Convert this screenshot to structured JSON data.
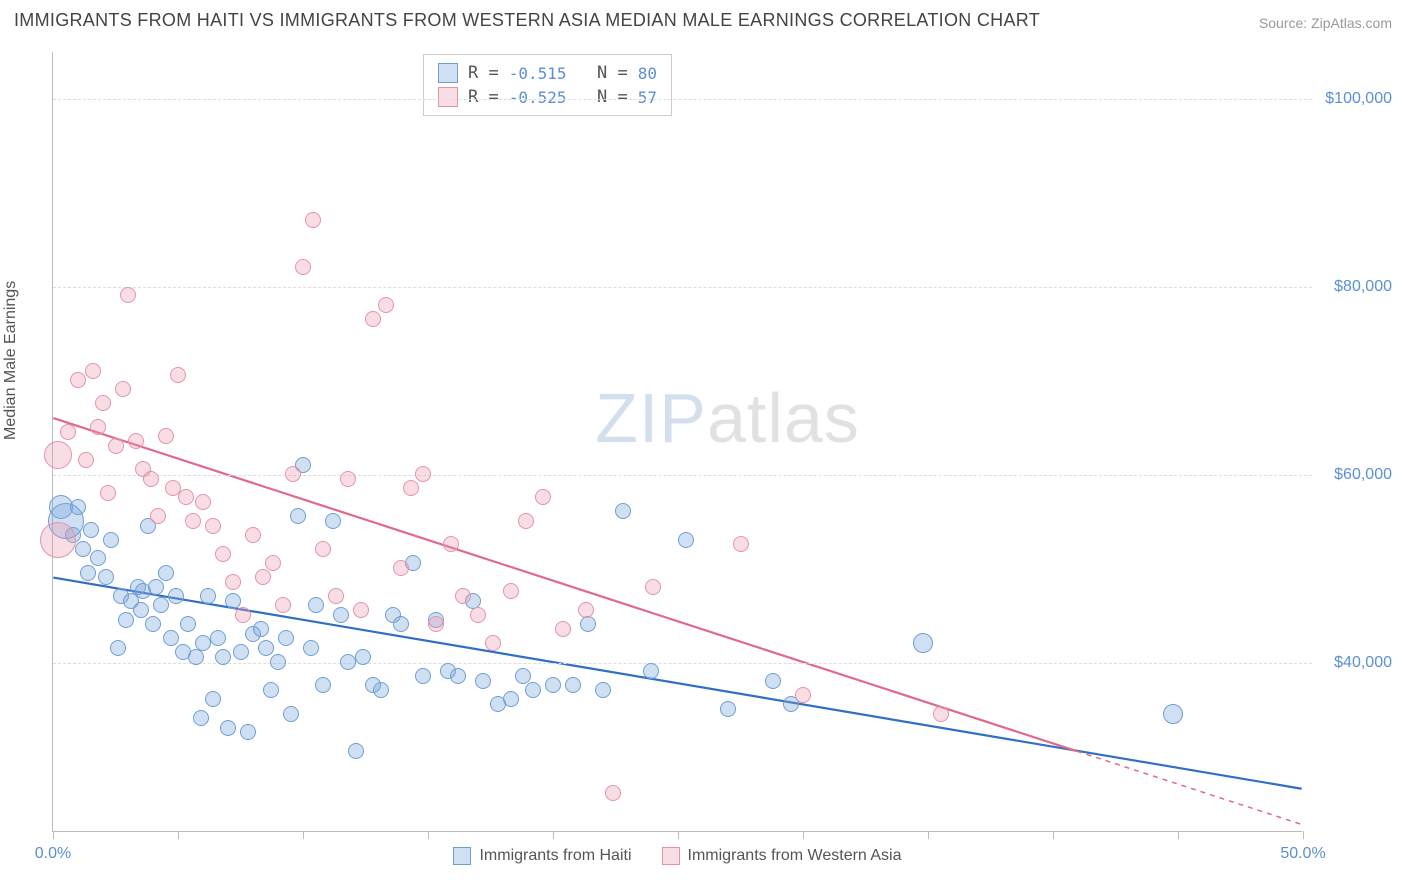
{
  "title": "IMMIGRANTS FROM HAITI VS IMMIGRANTS FROM WESTERN ASIA MEDIAN MALE EARNINGS CORRELATION CHART",
  "source_prefix": "Source: ",
  "source_name": "ZipAtlas.com",
  "y_axis_label": "Median Male Earnings",
  "watermark": {
    "part1": "ZIP",
    "part2": "atlas"
  },
  "chart": {
    "type": "scatter",
    "xlim": [
      0,
      50
    ],
    "ylim": [
      22000,
      105000
    ],
    "x_ticks": [
      0,
      5,
      10,
      15,
      20,
      25,
      30,
      35,
      40,
      45,
      50
    ],
    "x_tick_labels_shown": {
      "0": "0.0%",
      "50": "50.0%"
    },
    "y_gridlines": [
      40000,
      60000,
      80000,
      100000
    ],
    "y_tick_labels": {
      "40000": "$40,000",
      "60000": "$60,000",
      "80000": "$80,000",
      "100000": "$100,000"
    },
    "background_color": "#ffffff",
    "grid_color": "#dddddd",
    "axis_color": "#bbbbbb",
    "tick_label_color": "#5b8fd6",
    "marker_radius": 8
  },
  "series": [
    {
      "name": "Immigrants from Haiti",
      "fill": "rgba(120,165,220,0.35)",
      "stroke": "#6f9ed6",
      "line_color": "#2f6fc4",
      "R": "-0.515",
      "N": "80",
      "trend": {
        "x1": 0,
        "y1": 49000,
        "x2": 50,
        "y2": 26500
      },
      "points": [
        {
          "x": 0.3,
          "y": 56500,
          "r": 12
        },
        {
          "x": 0.5,
          "y": 55000,
          "r": 18
        },
        {
          "x": 0.8,
          "y": 53500
        },
        {
          "x": 1.0,
          "y": 56500
        },
        {
          "x": 1.2,
          "y": 52000
        },
        {
          "x": 1.4,
          "y": 49500
        },
        {
          "x": 1.5,
          "y": 54000
        },
        {
          "x": 1.8,
          "y": 51000
        },
        {
          "x": 2.1,
          "y": 49000
        },
        {
          "x": 2.3,
          "y": 53000
        },
        {
          "x": 2.6,
          "y": 41500
        },
        {
          "x": 2.7,
          "y": 47000
        },
        {
          "x": 2.9,
          "y": 44500
        },
        {
          "x": 3.1,
          "y": 46500
        },
        {
          "x": 3.4,
          "y": 48000
        },
        {
          "x": 3.5,
          "y": 45500
        },
        {
          "x": 3.6,
          "y": 47500
        },
        {
          "x": 3.8,
          "y": 54500
        },
        {
          "x": 4.0,
          "y": 44000
        },
        {
          "x": 4.1,
          "y": 48000
        },
        {
          "x": 4.3,
          "y": 46000
        },
        {
          "x": 4.5,
          "y": 49500
        },
        {
          "x": 4.7,
          "y": 42500
        },
        {
          "x": 4.9,
          "y": 47000
        },
        {
          "x": 5.2,
          "y": 41000
        },
        {
          "x": 5.4,
          "y": 44000
        },
        {
          "x": 5.7,
          "y": 40500
        },
        {
          "x": 5.9,
          "y": 34000
        },
        {
          "x": 6.0,
          "y": 42000
        },
        {
          "x": 6.2,
          "y": 47000
        },
        {
          "x": 6.4,
          "y": 36000
        },
        {
          "x": 6.6,
          "y": 42500
        },
        {
          "x": 6.8,
          "y": 40500
        },
        {
          "x": 7.0,
          "y": 33000
        },
        {
          "x": 7.2,
          "y": 46500
        },
        {
          "x": 7.5,
          "y": 41000
        },
        {
          "x": 7.8,
          "y": 32500
        },
        {
          "x": 8.0,
          "y": 43000
        },
        {
          "x": 8.3,
          "y": 43500
        },
        {
          "x": 8.5,
          "y": 41500
        },
        {
          "x": 8.7,
          "y": 37000
        },
        {
          "x": 9.0,
          "y": 40000
        },
        {
          "x": 9.3,
          "y": 42500
        },
        {
          "x": 9.5,
          "y": 34500
        },
        {
          "x": 9.8,
          "y": 55500
        },
        {
          "x": 10.0,
          "y": 61000
        },
        {
          "x": 10.3,
          "y": 41500
        },
        {
          "x": 10.5,
          "y": 46000
        },
        {
          "x": 10.8,
          "y": 37500
        },
        {
          "x": 11.2,
          "y": 55000
        },
        {
          "x": 11.5,
          "y": 45000
        },
        {
          "x": 11.8,
          "y": 40000
        },
        {
          "x": 12.1,
          "y": 30500
        },
        {
          "x": 12.4,
          "y": 40500
        },
        {
          "x": 12.8,
          "y": 37500
        },
        {
          "x": 13.1,
          "y": 37000
        },
        {
          "x": 13.6,
          "y": 45000
        },
        {
          "x": 13.9,
          "y": 44000
        },
        {
          "x": 14.4,
          "y": 50500
        },
        {
          "x": 14.8,
          "y": 38500
        },
        {
          "x": 15.3,
          "y": 44500
        },
        {
          "x": 15.8,
          "y": 39000
        },
        {
          "x": 16.2,
          "y": 38500
        },
        {
          "x": 16.8,
          "y": 46500
        },
        {
          "x": 17.2,
          "y": 38000
        },
        {
          "x": 17.8,
          "y": 35500
        },
        {
          "x": 18.3,
          "y": 36000
        },
        {
          "x": 18.8,
          "y": 38500
        },
        {
          "x": 19.2,
          "y": 37000
        },
        {
          "x": 20.0,
          "y": 37500
        },
        {
          "x": 20.8,
          "y": 37500
        },
        {
          "x": 21.4,
          "y": 44000
        },
        {
          "x": 22.0,
          "y": 37000
        },
        {
          "x": 22.8,
          "y": 56000
        },
        {
          "x": 23.9,
          "y": 39000
        },
        {
          "x": 25.3,
          "y": 53000
        },
        {
          "x": 27.0,
          "y": 35000
        },
        {
          "x": 28.8,
          "y": 38000
        },
        {
          "x": 29.5,
          "y": 35500
        },
        {
          "x": 34.8,
          "y": 42000,
          "r": 10
        },
        {
          "x": 44.8,
          "y": 34500,
          "r": 10
        }
      ]
    },
    {
      "name": "Immigrants from Western Asia",
      "fill": "rgba(235,150,170,0.32)",
      "stroke": "#e593a8",
      "line_color": "#e06a8a",
      "R": "-0.525",
      "N": "57",
      "trend": {
        "x1": 0,
        "y1": 66000,
        "x2": 41,
        "y2": 30500
      },
      "trend_dashed_ext": {
        "x1": 41,
        "y1": 30500,
        "x2": 50,
        "y2": 22700
      },
      "points": [
        {
          "x": 0.2,
          "y": 53000,
          "r": 18
        },
        {
          "x": 0.2,
          "y": 62000,
          "r": 14
        },
        {
          "x": 0.6,
          "y": 64500
        },
        {
          "x": 1.0,
          "y": 70000
        },
        {
          "x": 1.3,
          "y": 61500
        },
        {
          "x": 1.6,
          "y": 71000
        },
        {
          "x": 1.8,
          "y": 65000
        },
        {
          "x": 2.0,
          "y": 67500
        },
        {
          "x": 2.2,
          "y": 58000
        },
        {
          "x": 2.5,
          "y": 63000
        },
        {
          "x": 2.8,
          "y": 69000
        },
        {
          "x": 3.0,
          "y": 79000
        },
        {
          "x": 3.3,
          "y": 63500
        },
        {
          "x": 3.6,
          "y": 60500
        },
        {
          "x": 3.9,
          "y": 59500
        },
        {
          "x": 4.2,
          "y": 55500
        },
        {
          "x": 4.5,
          "y": 64000
        },
        {
          "x": 4.8,
          "y": 58500
        },
        {
          "x": 5.0,
          "y": 70500
        },
        {
          "x": 5.3,
          "y": 57500
        },
        {
          "x": 5.6,
          "y": 55000
        },
        {
          "x": 6.0,
          "y": 57000
        },
        {
          "x": 6.4,
          "y": 54500
        },
        {
          "x": 6.8,
          "y": 51500
        },
        {
          "x": 7.2,
          "y": 48500
        },
        {
          "x": 7.6,
          "y": 45000
        },
        {
          "x": 8.0,
          "y": 53500
        },
        {
          "x": 8.4,
          "y": 49000
        },
        {
          "x": 8.8,
          "y": 50500
        },
        {
          "x": 9.2,
          "y": 46000
        },
        {
          "x": 9.6,
          "y": 60000
        },
        {
          "x": 10.0,
          "y": 82000
        },
        {
          "x": 10.4,
          "y": 87000
        },
        {
          "x": 10.8,
          "y": 52000
        },
        {
          "x": 11.3,
          "y": 47000
        },
        {
          "x": 11.8,
          "y": 59500
        },
        {
          "x": 12.3,
          "y": 45500
        },
        {
          "x": 12.8,
          "y": 76500
        },
        {
          "x": 13.3,
          "y": 78000
        },
        {
          "x": 13.9,
          "y": 50000
        },
        {
          "x": 14.3,
          "y": 58500
        },
        {
          "x": 14.8,
          "y": 60000
        },
        {
          "x": 15.3,
          "y": 44000
        },
        {
          "x": 15.9,
          "y": 52500
        },
        {
          "x": 16.4,
          "y": 47000
        },
        {
          "x": 17.0,
          "y": 45000
        },
        {
          "x": 17.6,
          "y": 42000
        },
        {
          "x": 18.3,
          "y": 47500
        },
        {
          "x": 18.9,
          "y": 55000
        },
        {
          "x": 19.6,
          "y": 57500
        },
        {
          "x": 20.4,
          "y": 43500
        },
        {
          "x": 21.3,
          "y": 45500
        },
        {
          "x": 22.4,
          "y": 26000
        },
        {
          "x": 24.0,
          "y": 48000
        },
        {
          "x": 27.5,
          "y": 52500
        },
        {
          "x": 30.0,
          "y": 36500
        },
        {
          "x": 35.5,
          "y": 34500
        }
      ]
    }
  ],
  "legend_bottom": [
    {
      "label": "Immigrants from Haiti",
      "fill": "rgba(120,165,220,0.35)",
      "stroke": "#6f9ed6"
    },
    {
      "label": "Immigrants from Western Asia",
      "fill": "rgba(235,150,170,0.32)",
      "stroke": "#e593a8"
    }
  ]
}
